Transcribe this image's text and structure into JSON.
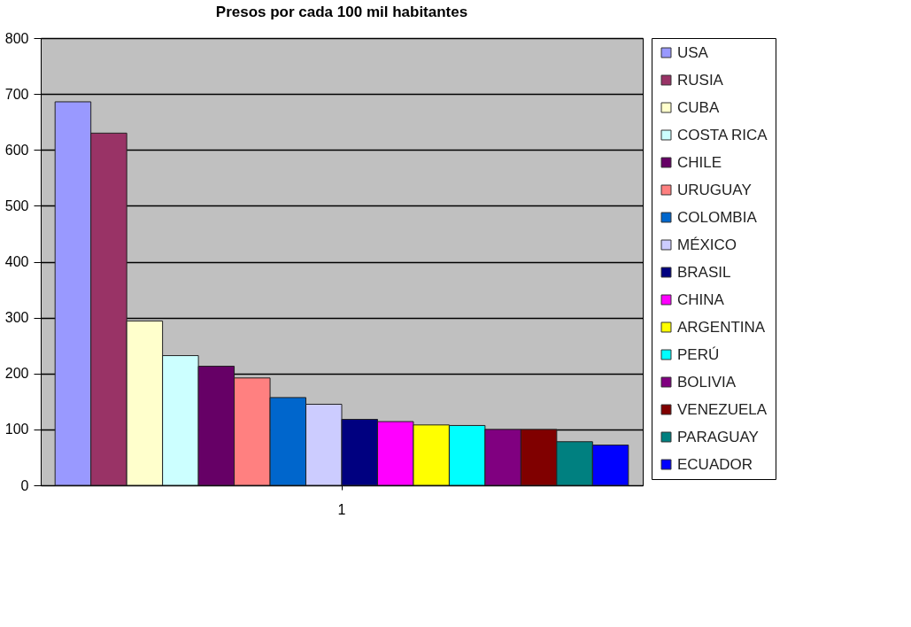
{
  "chart_data": {
    "type": "bar",
    "title": "Presos por cada 100 mil habitantes",
    "categories": [
      "1"
    ],
    "series": [
      {
        "name": "USA",
        "color": "#9999ff",
        "values": [
          686
        ]
      },
      {
        "name": "RUSIA",
        "color": "#993366",
        "values": [
          630
        ]
      },
      {
        "name": "CUBA",
        "color": "#ffffcc",
        "values": [
          294
        ]
      },
      {
        "name": "COSTA RICA",
        "color": "#ccffff",
        "values": [
          232
        ]
      },
      {
        "name": "CHILE",
        "color": "#660066",
        "values": [
          213
        ]
      },
      {
        "name": "URUGUAY",
        "color": "#ff8080",
        "values": [
          192
        ]
      },
      {
        "name": "COLOMBIA",
        "color": "#0066cc",
        "values": [
          157
        ]
      },
      {
        "name": "MÉXICO",
        "color": "#ccccff",
        "values": [
          145
        ]
      },
      {
        "name": "BRASIL",
        "color": "#000080",
        "values": [
          118
        ]
      },
      {
        "name": "CHINA",
        "color": "#ff00ff",
        "values": [
          114
        ]
      },
      {
        "name": "ARGENTINA",
        "color": "#ffff00",
        "values": [
          108
        ]
      },
      {
        "name": "PERÚ",
        "color": "#00ffff",
        "values": [
          107
        ]
      },
      {
        "name": "BOLIVIA",
        "color": "#800080",
        "values": [
          100
        ]
      },
      {
        "name": "VENEZUELA",
        "color": "#800000",
        "values": [
          100
        ]
      },
      {
        "name": "PARAGUAY",
        "color": "#008080",
        "values": [
          78
        ]
      },
      {
        "name": "ECUADOR",
        "color": "#0000ff",
        "values": [
          72
        ]
      }
    ],
    "ylim": [
      0,
      800
    ],
    "yticks": [
      0,
      100,
      200,
      300,
      400,
      500,
      600,
      700,
      800
    ],
    "grid": "y",
    "legend": "right"
  }
}
